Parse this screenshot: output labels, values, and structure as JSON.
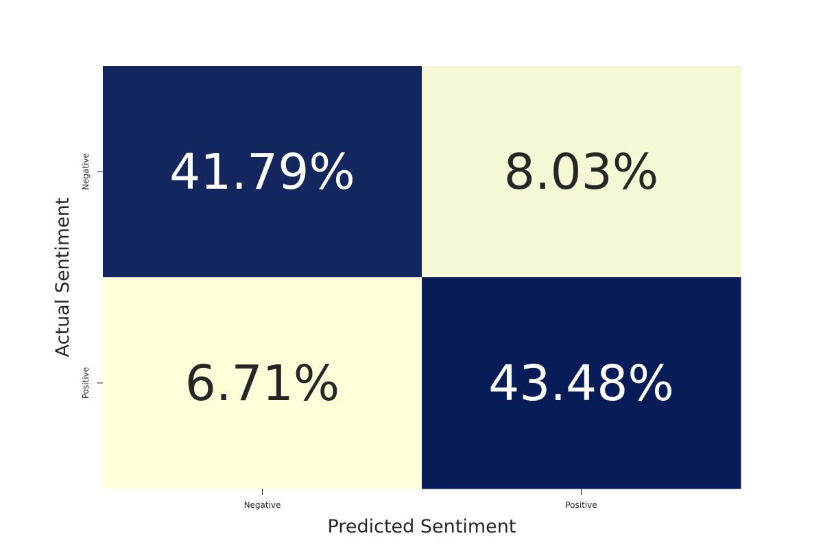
{
  "chart_data": {
    "type": "heatmap",
    "title": "",
    "xlabel": "Predicted Sentiment",
    "ylabel": "Actual Sentiment",
    "x_categories": [
      "Negative",
      "Positive"
    ],
    "y_categories": [
      "Negative",
      "Positive"
    ],
    "values": [
      [
        41.79,
        8.03
      ],
      [
        6.71,
        43.48
      ]
    ],
    "labels": [
      [
        "41.79%",
        "8.03%"
      ],
      [
        "6.71%",
        "43.48%"
      ]
    ],
    "colormap": "YlGnBu",
    "colors": {
      "high": "#081d58",
      "low": "#ffffd9",
      "text_on_high": "#ffffff",
      "text_on_low": "#262626"
    },
    "colorbar": false,
    "grid": false
  }
}
